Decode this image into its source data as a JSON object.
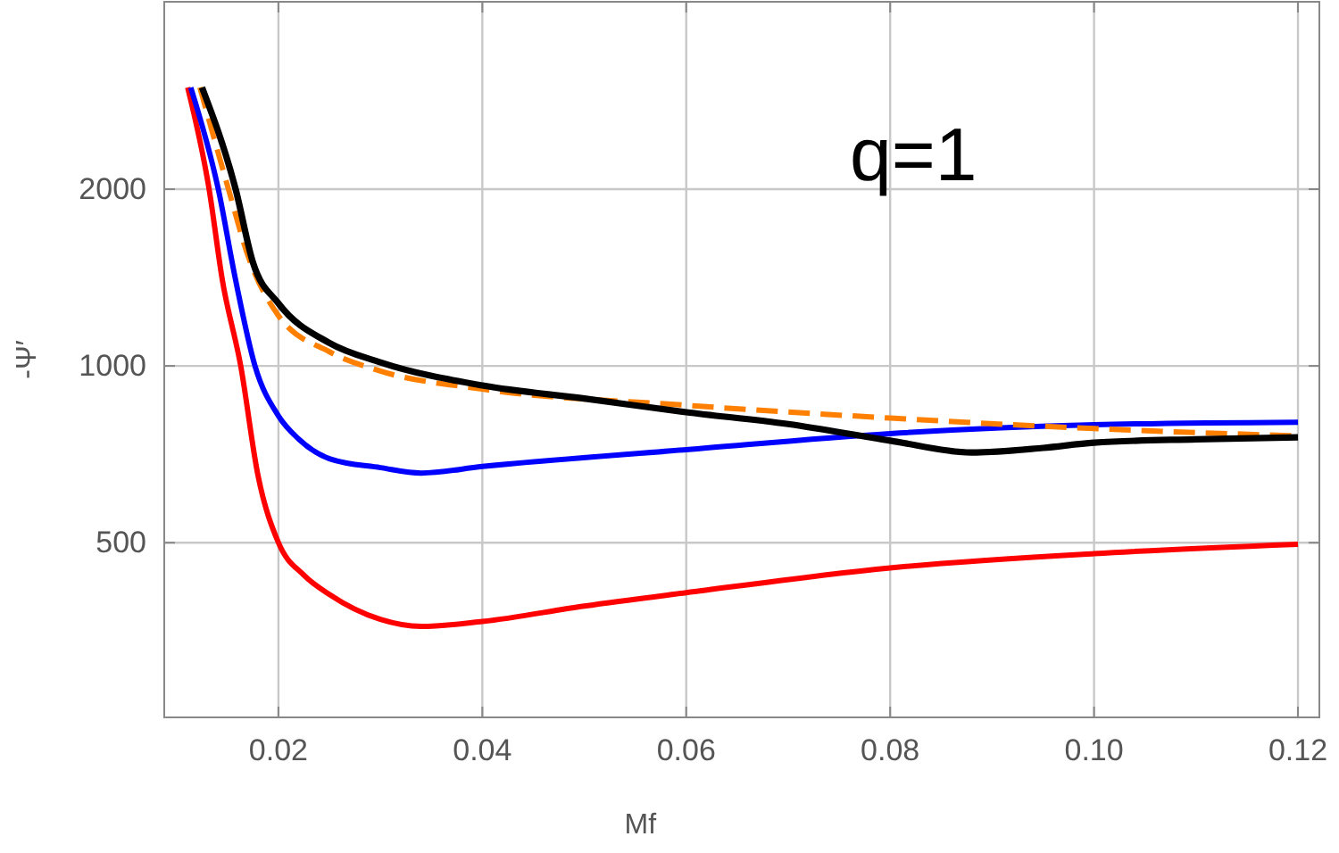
{
  "chart_data": {
    "type": "line",
    "xlabel": "Mf",
    "ylabel": "-Ψ′",
    "annotations": [
      "q=1"
    ],
    "log": "y",
    "grid": true,
    "xlim": [
      0.0088,
      0.1221
    ],
    "ylim": [
      252,
      4170
    ],
    "xticks": [
      0.02,
      0.04,
      0.06,
      0.08,
      {
        "value": 0.1,
        "label": "0.10"
      },
      0.12
    ],
    "yticks": [
      500,
      1000,
      2000
    ],
    "series": [
      {
        "color": "#ff0000",
        "line_style": "solid",
        "x": [
          0.0111,
          0.0132,
          0.0145,
          0.0163,
          0.018,
          0.02,
          0.0225,
          0.025,
          0.03,
          0.034,
          0.04,
          0.05,
          0.06,
          0.08,
          0.1,
          0.12
        ],
        "values": [
          2980,
          2000,
          1400,
          1000,
          650,
          500,
          440,
          408,
          370,
          360,
          367,
          390,
          411,
          453,
          479,
          497
        ]
      },
      {
        "color": "#0000ff",
        "line_style": "solid",
        "x": [
          0.0114,
          0.0141,
          0.0158,
          0.0177,
          0.02,
          0.022,
          0.025,
          0.03,
          0.034,
          0.04,
          0.06,
          0.08,
          0.1,
          0.12
        ],
        "values": [
          2980,
          2000,
          1400,
          1000,
          822,
          750,
          695,
          671,
          657,
          674,
          720,
          767,
          794,
          802
        ]
      },
      {
        "color": "#ff8000",
        "line_style": "dashed",
        "x": [
          0.0123,
          0.0151,
          0.017,
          0.02,
          0.025,
          0.03,
          0.04,
          0.06,
          0.08,
          0.1,
          0.12
        ],
        "values": [
          2980,
          2000,
          1543,
          1218,
          1057,
          980,
          913,
          857,
          815,
          782,
          760
        ]
      },
      {
        "color": "#000000",
        "line_style": "solid",
        "x": [
          0.0125,
          0.0158,
          0.0175,
          0.02,
          0.025,
          0.03,
          0.04,
          0.05,
          0.06,
          0.07,
          0.08,
          0.088,
          0.095,
          0.1,
          0.11,
          0.12
        ],
        "values": [
          2980,
          2000,
          1500,
          1278,
          1094,
          1014,
          926,
          880,
          834,
          796,
          746,
          712,
          725,
          740,
          750,
          756
        ]
      }
    ]
  }
}
